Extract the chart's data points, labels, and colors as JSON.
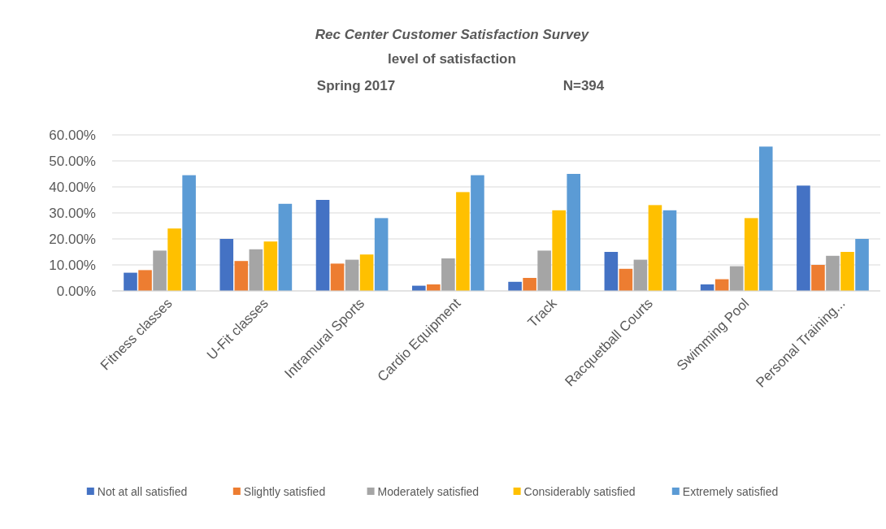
{
  "chart_data": {
    "type": "bar",
    "title": "Rec Center Customer Satisfaction Survey",
    "subtitle": "level of satisfaction",
    "annotations": [
      "Spring 2017",
      "N=394"
    ],
    "categories": [
      "Fitness classes",
      "U-Fit classes",
      "Intramural Sports",
      "Cardio Equipment",
      "Track",
      "Racquetball Courts",
      "Swimming Pool",
      "Personal Training..."
    ],
    "series": [
      {
        "name": "Not at all satisfied",
        "color": "#4472c4",
        "values": [
          7,
          20,
          35,
          2,
          3.5,
          15,
          2.5,
          40.5
        ]
      },
      {
        "name": "Slightly satisfied",
        "color": "#ed7d31",
        "values": [
          8,
          11.5,
          10.5,
          2.5,
          5,
          8.5,
          4.5,
          10
        ]
      },
      {
        "name": "Moderately satisfied",
        "color": "#a5a5a5",
        "values": [
          15.5,
          16,
          12,
          12.5,
          15.5,
          12,
          9.5,
          13.5
        ]
      },
      {
        "name": "Considerably satisfied",
        "color": "#ffc000",
        "values": [
          24,
          19,
          14,
          38,
          31,
          33,
          28,
          15
        ]
      },
      {
        "name": "Extremely satisfied",
        "color": "#5b9bd5",
        "values": [
          44.5,
          33.5,
          28,
          44.5,
          45,
          31,
          55.5,
          20
        ]
      }
    ],
    "ylim": [
      0,
      60
    ],
    "yticks": [
      {
        "value": 0,
        "label": "0.00%"
      },
      {
        "value": 10,
        "label": "10.00%"
      },
      {
        "value": 20,
        "label": "20.00%"
      },
      {
        "value": 30,
        "label": "30.00%"
      },
      {
        "value": 40,
        "label": "40.00%"
      },
      {
        "value": 50,
        "label": "50.00%"
      },
      {
        "value": 60,
        "label": "60.00%"
      }
    ],
    "grid": "y",
    "legend": "bottom"
  }
}
